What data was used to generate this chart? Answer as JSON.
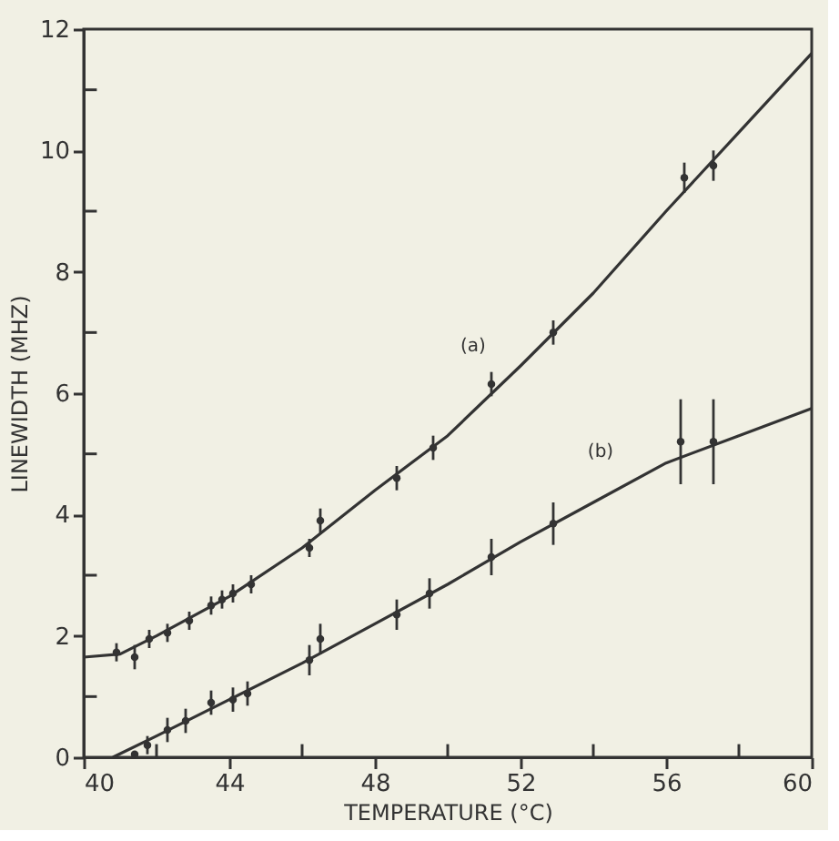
{
  "chart_data": {
    "type": "scatter",
    "xlabel": "TEMPERATURE (°C)",
    "ylabel": "LINEWIDTH (MHZ)",
    "xlim": [
      40,
      60
    ],
    "ylim": [
      0,
      12
    ],
    "xticks": [
      40,
      {
        "value": 42,
        "label": null
      },
      44,
      {
        "value": 46,
        "label": null
      },
      48,
      {
        "value": 50,
        "label": null
      },
      52,
      {
        "value": 54,
        "label": null
      },
      56,
      {
        "value": 58,
        "label": null
      },
      60
    ],
    "yticks": [
      0,
      {
        "value": 1,
        "label": null
      },
      2,
      {
        "value": 3,
        "label": null
      },
      4,
      {
        "value": 5,
        "label": null
      },
      6,
      {
        "value": 7,
        "label": null
      },
      8,
      {
        "value": 9,
        "label": null
      },
      10,
      {
        "value": 11,
        "label": null
      },
      12
    ],
    "grid": false,
    "series": [
      {
        "type": "line",
        "color": "#333333",
        "x": [
          40,
          41,
          42,
          44,
          46,
          48,
          50,
          52,
          54,
          56,
          58,
          60
        ],
        "values": [
          1.65,
          1.7,
          2.0,
          2.65,
          3.45,
          4.4,
          5.3,
          6.45,
          7.65,
          9.0,
          10.3,
          11.6
        ]
      },
      {
        "marker": "circle",
        "color": "#333333",
        "x": [
          40.9,
          41.4,
          41.8,
          42.3,
          42.9,
          43.5,
          43.8,
          44.1,
          44.6,
          46.2,
          46.5,
          48.6,
          49.6,
          51.2,
          52.9,
          56.5,
          57.3
        ],
        "values": [
          1.73,
          1.65,
          1.95,
          2.05,
          2.25,
          2.5,
          2.6,
          2.7,
          2.85,
          3.45,
          3.9,
          4.6,
          5.1,
          6.15,
          7.0,
          9.55,
          9.75
        ],
        "errors": [
          0.15,
          0.2,
          0.15,
          0.15,
          0.15,
          0.15,
          0.15,
          0.15,
          0.15,
          0.15,
          0.2,
          0.2,
          0.2,
          0.2,
          0.2,
          0.25,
          0.25
        ]
      },
      {
        "type": "line",
        "color": "#333333",
        "x": [
          40.8,
          42,
          44,
          46,
          48,
          50,
          52,
          54,
          56,
          58,
          60
        ],
        "values": [
          0,
          0.35,
          0.95,
          1.55,
          2.2,
          2.85,
          3.55,
          4.2,
          4.85,
          5.3,
          5.75
        ]
      },
      {
        "marker": "circle",
        "color": "#333333",
        "x": [
          41.4,
          41.75,
          42.3,
          42.8,
          43.5,
          44.1,
          44.5,
          46.2,
          46.5,
          48.6,
          49.5,
          51.2,
          52.9,
          56.4,
          57.3
        ],
        "values": [
          0.05,
          0.2,
          0.45,
          0.6,
          0.9,
          0.95,
          1.05,
          1.6,
          1.95,
          2.35,
          2.7,
          3.3,
          3.85,
          5.2,
          5.2
        ],
        "errors": [
          0.05,
          0.15,
          0.2,
          0.2,
          0.2,
          0.2,
          0.2,
          0.25,
          0.25,
          0.25,
          0.25,
          0.3,
          0.35,
          0.7,
          0.7
        ]
      }
    ],
    "annotations": [
      "(a)",
      "(b)"
    ]
  }
}
